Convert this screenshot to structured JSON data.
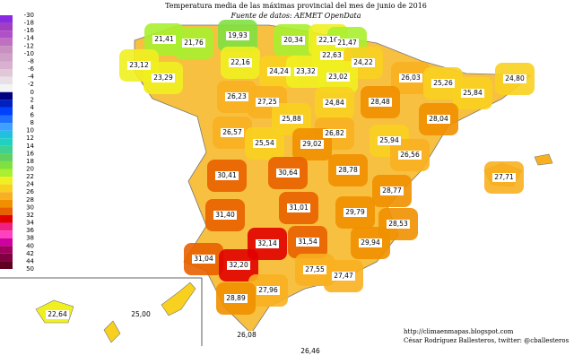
{
  "title": "Temperatura media de las máximas provincial del mes de junio de 2016",
  "subtitle": "Fuente de datos: AEMET OpenData",
  "credits": [
    "http://climaenmapas.blogspot.com",
    "César Rodríguez Ballesteros, twitter: @cballesteros"
  ],
  "legend": {
    "labels": [
      -30,
      -18,
      -16,
      -14,
      -12,
      -10,
      -8,
      -6,
      -4,
      -2,
      0,
      2,
      4,
      6,
      8,
      10,
      12,
      14,
      16,
      18,
      20,
      22,
      24,
      26,
      28,
      30,
      32,
      34,
      36,
      38,
      40,
      42,
      44,
      50
    ],
    "colors": [
      "#8a2be2",
      "#a040c0",
      "#b050c8",
      "#c070c0",
      "#c890c0",
      "#d0a0c8",
      "#d8b0d0",
      "#e0c8d8",
      "#e8e0e8",
      "#f4f4f4",
      "#000080",
      "#0020c0",
      "#0040ff",
      "#2070ff",
      "#40a0ff",
      "#20c0e0",
      "#20d0c0",
      "#40d090",
      "#60d060",
      "#80e040",
      "#a8f030",
      "#f0f020",
      "#f8d020",
      "#f8b020",
      "#f09000",
      "#e86000",
      "#e00000",
      "#f02080",
      "#ff40c0",
      "#d000a0",
      "#a00060",
      "#800040",
      "#600020"
    ]
  },
  "provinces": [
    "21,41",
    "21,76",
    "19,93",
    "20,34",
    "22,16",
    "21,47",
    "23,12",
    "22,16",
    "22,63",
    "24,22",
    "23,29",
    "24,24",
    "23,32",
    "23,02",
    "26,03",
    "25,26",
    "24,80",
    "25,84",
    "26,23",
    "27,25",
    "24,84",
    "28,48",
    "28,04",
    "25,88",
    "26,57",
    "26,82",
    "25,54",
    "29,02",
    "25,94",
    "26,56",
    "28,78",
    "30,41",
    "30,64",
    "27,71",
    "28,77",
    "31,01",
    "31,40",
    "29,79",
    "28,53",
    "32,14",
    "31,54",
    "29,94",
    "31,04",
    "32,20",
    "27,55",
    "27,47",
    "27,96",
    "28,89",
    "22,64",
    "25,00",
    "26,08",
    "26,46"
  ]
}
